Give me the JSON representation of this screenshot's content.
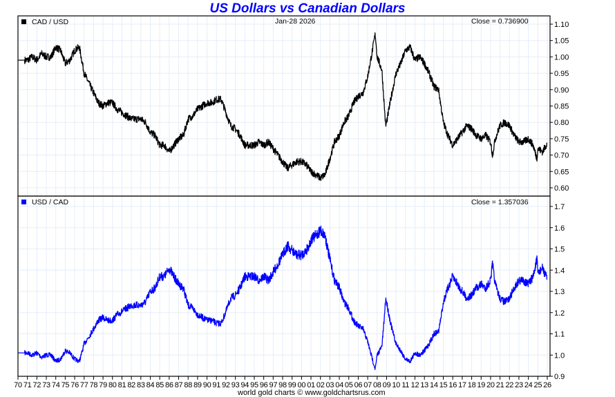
{
  "chart_data": [
    {
      "type": "line",
      "title": "US Dollars vs Canadian Dollars",
      "panel": "top",
      "legend": "CAD / USD",
      "date_label": "Jan-28  2026",
      "close_label": "Close = 0.736900",
      "ylim": [
        0.58,
        1.125
      ],
      "yticks": [
        "1.10",
        "1.05",
        "1.00",
        "0.95",
        "0.90",
        "0.85",
        "0.80",
        "0.75",
        "0.70",
        "0.65",
        "0.60"
      ],
      "ytick_values": [
        1.1,
        1.05,
        1.0,
        0.95,
        0.9,
        0.85,
        0.8,
        0.75,
        0.7,
        0.65,
        0.6
      ],
      "grid": true,
      "legend_position": "top-left",
      "series": [
        {
          "name": "CAD / USD",
          "color": "#000000",
          "x": [
            1970,
            1970.5,
            1971,
            1971.5,
            1972,
            1972.5,
            1973,
            1973.5,
            1974,
            1974.5,
            1975,
            1975.5,
            1976,
            1976.5,
            1977,
            1977.5,
            1978,
            1978.5,
            1979,
            1979.5,
            1980,
            1980.5,
            1981,
            1981.5,
            1982,
            1982.5,
            1983,
            1983.5,
            1984,
            1984.5,
            1985,
            1985.5,
            1986,
            1986.5,
            1987,
            1987.5,
            1988,
            1988.5,
            1989,
            1989.5,
            1990,
            1990.5,
            1991,
            1991.5,
            1992,
            1992.5,
            1993,
            1993.5,
            1994,
            1994.5,
            1995,
            1995.5,
            1996,
            1996.5,
            1997,
            1997.5,
            1998,
            1998.5,
            1999,
            1999.5,
            2000,
            2000.5,
            2001,
            2001.5,
            2002,
            2002.5,
            2003,
            2003.5,
            2004,
            2004.5,
            2005,
            2005.5,
            2006,
            2006.5,
            2007,
            2007.5,
            2007.8,
            2008,
            2008.5,
            2008.9,
            2009,
            2009.5,
            2010,
            2010.5,
            2011,
            2011.5,
            2012,
            2012.5,
            2013,
            2013.5,
            2014,
            2014.5,
            2015,
            2015.5,
            2016,
            2016.5,
            2017,
            2017.5,
            2018,
            2018.5,
            2019,
            2019.5,
            2020,
            2020.2,
            2020.5,
            2021,
            2021.5,
            2022,
            2022.5,
            2023,
            2023.5,
            2024,
            2024.5,
            2024.9,
            2025,
            2025.5,
            2026
          ],
          "values": [
            0.99,
            0.99,
            0.99,
            1.0,
            0.99,
            1.01,
            1.0,
            1.0,
            1.03,
            1.02,
            0.98,
            0.99,
            1.02,
            1.03,
            0.95,
            0.92,
            0.89,
            0.86,
            0.85,
            0.86,
            0.86,
            0.84,
            0.83,
            0.82,
            0.81,
            0.81,
            0.81,
            0.8,
            0.77,
            0.76,
            0.73,
            0.73,
            0.71,
            0.73,
            0.75,
            0.76,
            0.81,
            0.82,
            0.84,
            0.85,
            0.86,
            0.86,
            0.87,
            0.87,
            0.83,
            0.79,
            0.78,
            0.76,
            0.73,
            0.73,
            0.73,
            0.74,
            0.73,
            0.74,
            0.72,
            0.7,
            0.68,
            0.66,
            0.67,
            0.68,
            0.68,
            0.67,
            0.65,
            0.64,
            0.63,
            0.64,
            0.69,
            0.74,
            0.76,
            0.8,
            0.82,
            0.86,
            0.88,
            0.89,
            0.94,
            1.02,
            1.07,
            1.0,
            0.96,
            0.79,
            0.8,
            0.88,
            0.95,
            0.98,
            1.02,
            1.03,
            0.99,
            1.0,
            0.98,
            0.95,
            0.91,
            0.9,
            0.8,
            0.76,
            0.73,
            0.75,
            0.77,
            0.79,
            0.78,
            0.76,
            0.75,
            0.76,
            0.74,
            0.7,
            0.75,
            0.79,
            0.8,
            0.79,
            0.76,
            0.74,
            0.74,
            0.75,
            0.73,
            0.69,
            0.72,
            0.71,
            0.737
          ]
        }
      ]
    },
    {
      "type": "line",
      "panel": "bottom",
      "legend": "USD / CAD",
      "close_label": "Close = 1.357036",
      "ylim": [
        0.9,
        1.75
      ],
      "yticks": [
        "1.7",
        "1.6",
        "1.5",
        "1.4",
        "1.3",
        "1.2",
        "1.1",
        "1.0",
        "0.9"
      ],
      "ytick_values": [
        1.7,
        1.6,
        1.5,
        1.4,
        1.3,
        1.2,
        1.1,
        1.0,
        0.9
      ],
      "grid": true,
      "legend_position": "top-left",
      "series": [
        {
          "name": "USD / CAD",
          "color": "#0000ff",
          "derived_from": "reciprocal of CAD / USD"
        }
      ]
    }
  ],
  "x_axis": {
    "labels": [
      "70",
      "71",
      "72",
      "73",
      "74",
      "75",
      "76",
      "77",
      "78",
      "79",
      "80",
      "81",
      "82",
      "83",
      "84",
      "85",
      "86",
      "87",
      "88",
      "89",
      "90",
      "91",
      "92",
      "93",
      "94",
      "95",
      "96",
      "97",
      "98",
      "99",
      "00",
      "01",
      "02",
      "03",
      "04",
      "05",
      "06",
      "07",
      "08",
      "09",
      "10",
      "11",
      "12",
      "13",
      "14",
      "15",
      "16",
      "17",
      "18",
      "19",
      "20",
      "21",
      "22",
      "23",
      "24",
      "25",
      "26"
    ],
    "start_year": 1970,
    "end_year": 2026
  },
  "footer": "world gold charts © www.goldchartsrus.com",
  "colors": {
    "title": "#0000ff",
    "grid": "#e3eef8",
    "top_line": "#000000",
    "bottom_line": "#0000ff"
  }
}
